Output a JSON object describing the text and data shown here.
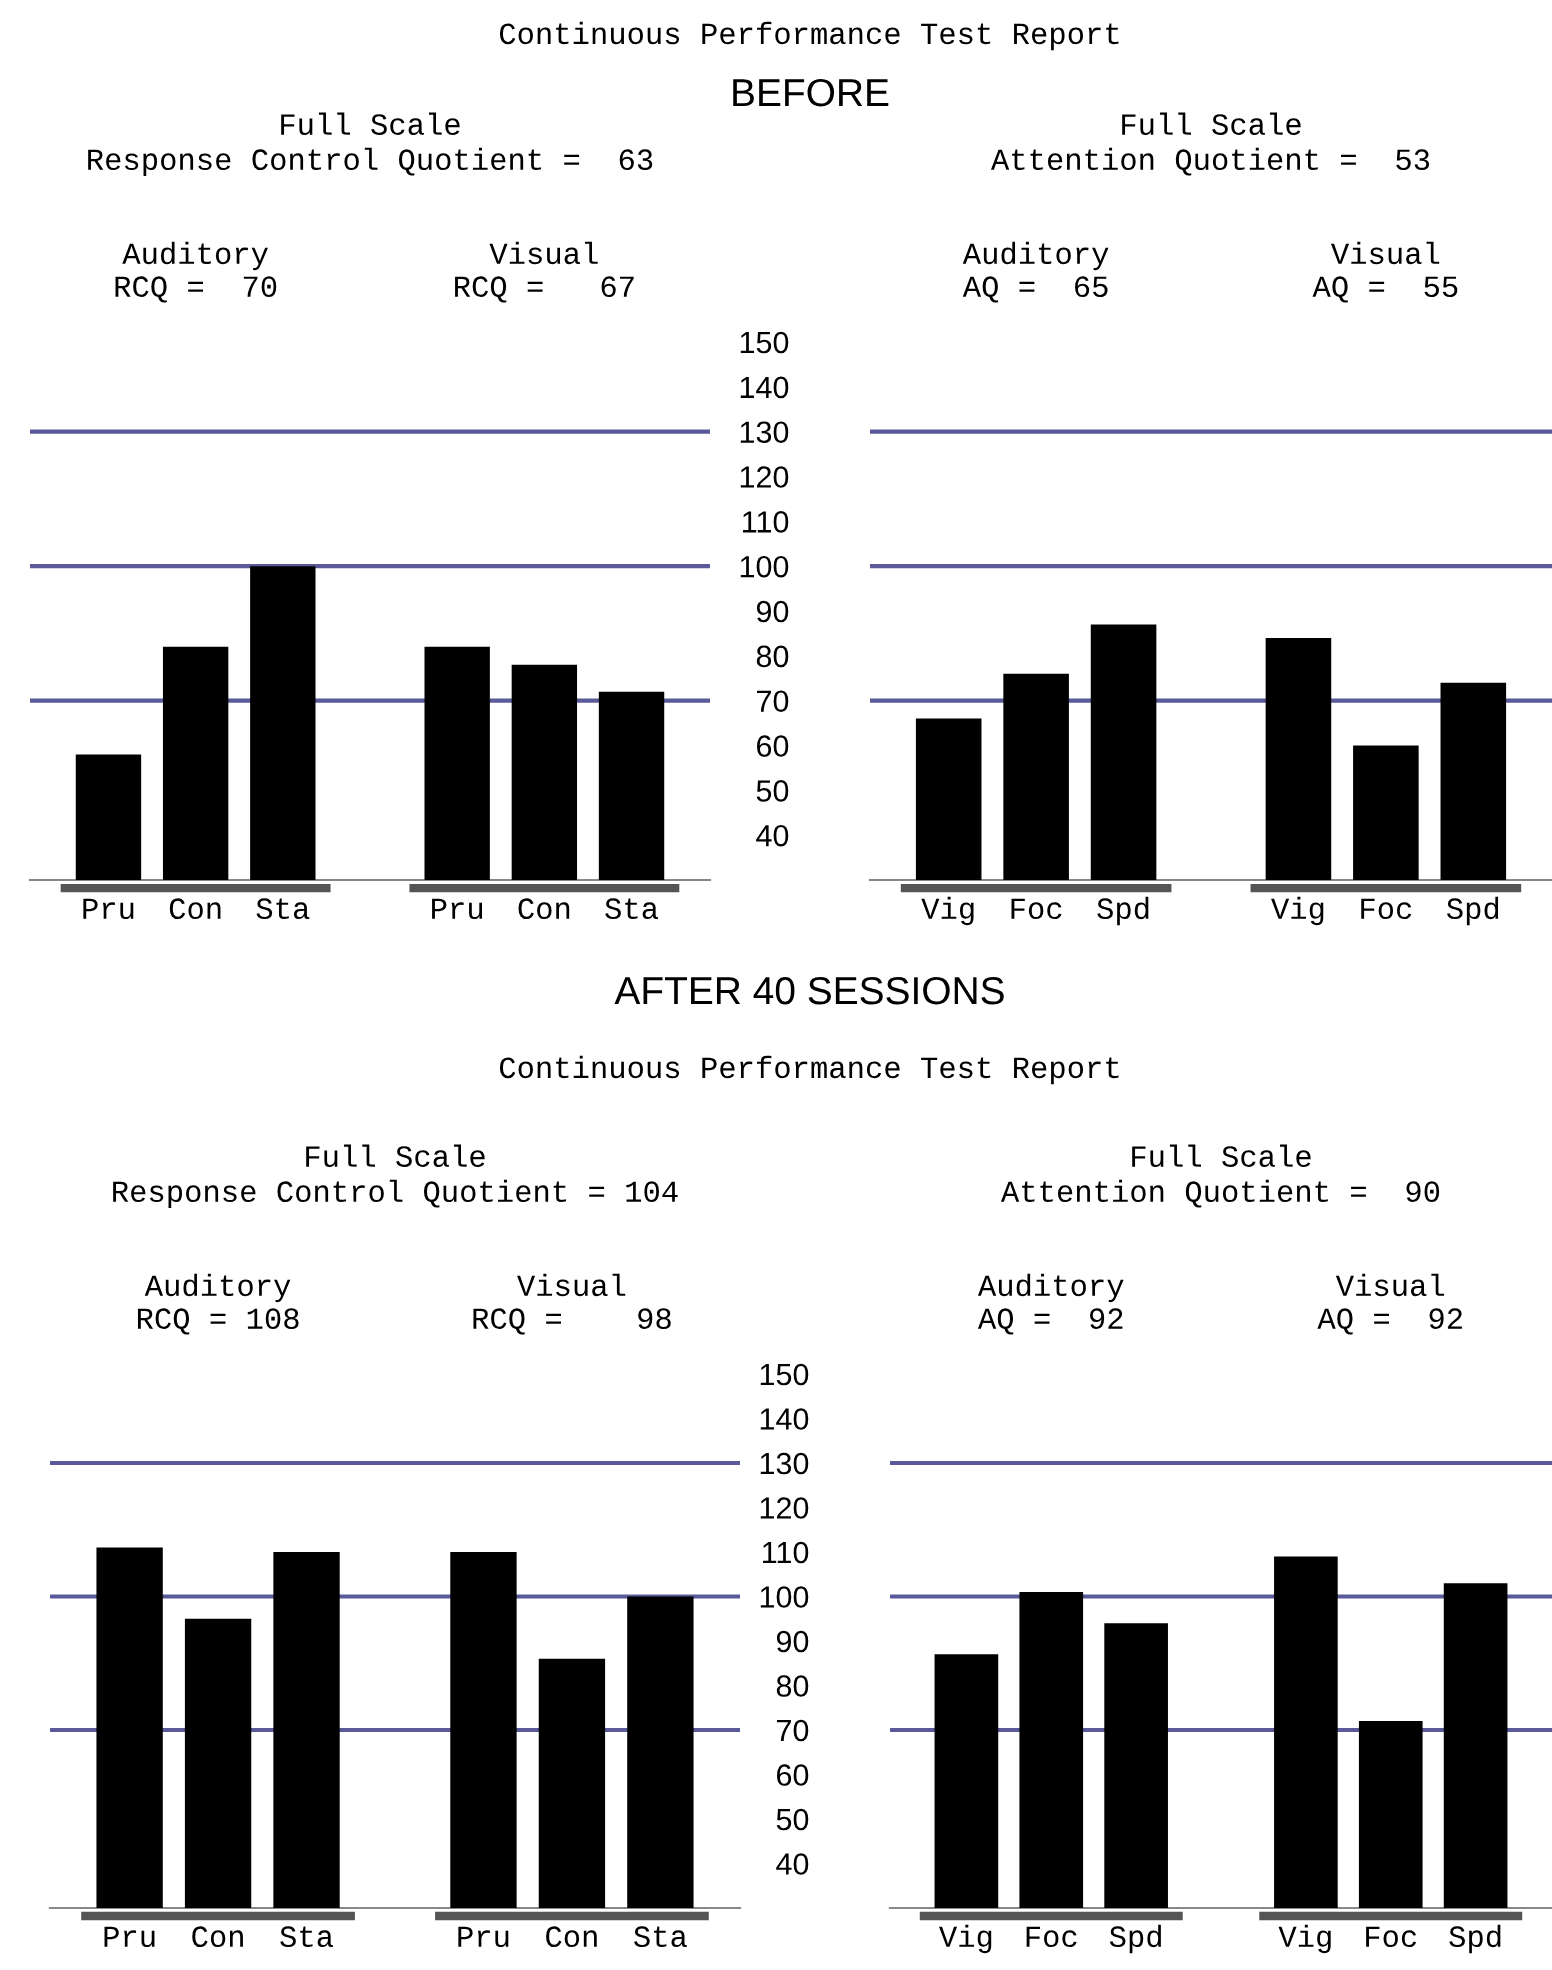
{
  "chart_data": [
    {
      "type": "bar",
      "title": "Full Scale\nResponse Control Quotient =  63",
      "categories": [
        "Pru",
        "Con",
        "Sta",
        null,
        "Pru",
        "Con",
        "Sta"
      ],
      "values": [
        58,
        82,
        100,
        null,
        82,
        78,
        72
      ],
      "color": "#000000",
      "ylim": [
        30,
        150
      ],
      "tick_labels": "x",
      "ref_lines": [
        {
          "axis": "y",
          "value": 70,
          "color": "#5a5a9a"
        },
        {
          "axis": "y",
          "value": 100,
          "color": "#5a5a9a"
        },
        {
          "axis": "y",
          "value": 130,
          "color": "#5a5a9a"
        }
      ],
      "annotations": [
        "Continuous Performance Test Report",
        "BEFORE",
        "Auditory\nRCQ =  70",
        "Visual\nRCQ =   67"
      ]
    },
    {
      "type": "bar",
      "title": "Full Scale\nAttention Quotient =  53",
      "categories": [
        "Vig",
        "Foc",
        "Spd",
        null,
        "Vig",
        "Foc",
        "Spd"
      ],
      "values": [
        66,
        76,
        87,
        null,
        84,
        60,
        74
      ],
      "color": "#000000",
      "ylim": [
        30,
        150
      ],
      "yticks": [
        40,
        50,
        60,
        70,
        80,
        90,
        100,
        110,
        120,
        130,
        140,
        150
      ],
      "ref_lines": [
        {
          "axis": "y",
          "value": 70,
          "color": "#5a5a9a"
        },
        {
          "axis": "y",
          "value": 100,
          "color": "#5a5a9a"
        },
        {
          "axis": "y",
          "value": 130,
          "color": "#5a5a9a"
        }
      ],
      "annotations": [
        "Auditory\nAQ =  65",
        "Visual\nAQ =  55"
      ]
    },
    {
      "type": "bar",
      "title": "Full Scale\nResponse Control Quotient = 104",
      "categories": [
        "Pru",
        "Con",
        "Sta",
        null,
        "Pru",
        "Con",
        "Sta"
      ],
      "values": [
        111,
        95,
        110,
        null,
        110,
        86,
        100
      ],
      "color": "#000000",
      "ylim": [
        30,
        150
      ],
      "tick_labels": "x",
      "ref_lines": [
        {
          "axis": "y",
          "value": 70,
          "color": "#5a5a9a"
        },
        {
          "axis": "y",
          "value": 100,
          "color": "#5a5a9a"
        },
        {
          "axis": "y",
          "value": 130,
          "color": "#5a5a9a"
        }
      ],
      "annotations": [
        "AFTER 40 SESSIONS",
        "Continuous Performance Test Report",
        "Auditory\nRCQ = 108",
        "Visual\nRCQ =    98"
      ]
    },
    {
      "type": "bar",
      "title": "Full Scale\nAttention Quotient =  90",
      "categories": [
        "Vig",
        "Foc",
        "Spd",
        null,
        "Vig",
        "Foc",
        "Spd"
      ],
      "values": [
        87,
        101,
        94,
        null,
        109,
        72,
        103
      ],
      "color": "#000000",
      "ylim": [
        30,
        150
      ],
      "yticks": [
        40,
        50,
        60,
        70,
        80,
        90,
        100,
        110,
        120,
        130,
        140,
        150
      ],
      "ref_lines": [
        {
          "axis": "y",
          "value": 70,
          "color": "#5a5a9a"
        },
        {
          "axis": "y",
          "value": 100,
          "color": "#5a5a9a"
        },
        {
          "axis": "y",
          "value": 130,
          "color": "#5a5a9a"
        }
      ],
      "annotations": [
        "Auditory\nAQ =  92",
        "Visual\nAQ =  92"
      ]
    }
  ]
}
